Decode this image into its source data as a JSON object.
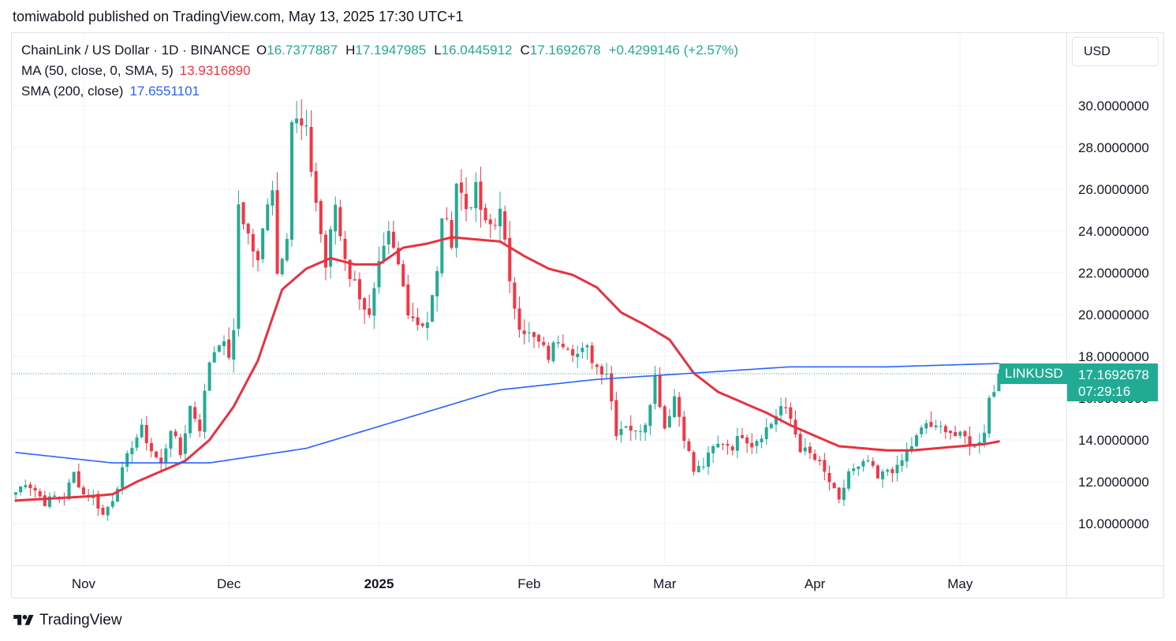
{
  "header": {
    "publisher_line": "tomiwabold published on TradingView.com, May 13, 2025 17:30 UTC+1"
  },
  "legend": {
    "symbol": "ChainLink / US Dollar · 1D · BINANCE",
    "o_label": "O",
    "o_value": "16.7377887",
    "h_label": "H",
    "h_value": "17.1947985",
    "l_label": "L",
    "l_value": "16.0445912",
    "c_label": "C",
    "c_value": "17.1692678",
    "change": "+0.4299146 (+2.57%)",
    "ma_label": "MA (50, close, 0, SMA, 5)",
    "ma_value": "13.9316890",
    "sma_label": "SMA (200, close)",
    "sma_value": "17.6551101"
  },
  "currency": "USD",
  "price_tag": {
    "symbol": "LINKUSD",
    "price": "17.1692678",
    "countdown": "07:29:16"
  },
  "brand": "TradingView",
  "colors": {
    "up": "#22ab94",
    "down": "#f23645",
    "ma50": "#e8313f",
    "sma200": "#2962ff",
    "grid": "#f0f3fa",
    "text": "#131722"
  },
  "chart_data": {
    "type": "candlestick",
    "interval": "1D",
    "y_ticks": [
      "10.0000000",
      "12.0000000",
      "14.0000000",
      "16.0000000",
      "18.0000000",
      "20.0000000",
      "22.0000000",
      "24.0000000",
      "26.0000000",
      "28.0000000",
      "30.0000000"
    ],
    "y_tick_values": [
      10,
      12,
      14,
      16,
      18,
      20,
      22,
      24,
      26,
      28,
      30
    ],
    "ylim": [
      8,
      31.6
    ],
    "x_ticks": [
      {
        "label": "Nov",
        "index": 14,
        "bold": false
      },
      {
        "label": "Dec",
        "index": 44,
        "bold": false
      },
      {
        "label": "2025",
        "index": 75,
        "bold": true
      },
      {
        "label": "Feb",
        "index": 106,
        "bold": false
      },
      {
        "label": "Mar",
        "index": 134,
        "bold": false
      },
      {
        "label": "Apr",
        "index": 165,
        "bold": false
      },
      {
        "label": "May",
        "index": 195,
        "bold": false
      }
    ],
    "x_count": 204,
    "last_price": 17.17,
    "anchors": [
      [
        0,
        11.5
      ],
      [
        2,
        12.0
      ],
      [
        4,
        11.6
      ],
      [
        6,
        11.0
      ],
      [
        8,
        11.3
      ],
      [
        10,
        11.3
      ],
      [
        12,
        12.4
      ],
      [
        14,
        11.4
      ],
      [
        16,
        11.3
      ],
      [
        18,
        10.4
      ],
      [
        20,
        11.2
      ],
      [
        22,
        12.5
      ],
      [
        24,
        13.8
      ],
      [
        26,
        14.5
      ],
      [
        28,
        13.5
      ],
      [
        30,
        12.8
      ],
      [
        32,
        14.6
      ],
      [
        34,
        13.3
      ],
      [
        36,
        15.6
      ],
      [
        38,
        14.6
      ],
      [
        40,
        17.8
      ],
      [
        42,
        18.8
      ],
      [
        44,
        18.1
      ],
      [
        45,
        19.0
      ],
      [
        46,
        25.3
      ],
      [
        48,
        23.8
      ],
      [
        50,
        22.4
      ],
      [
        52,
        25.6
      ],
      [
        53,
        26.2
      ],
      [
        54,
        22.0
      ],
      [
        56,
        24.0
      ],
      [
        57,
        29.3
      ],
      [
        58,
        29.2
      ],
      [
        60,
        28.6
      ],
      [
        62,
        25.4
      ],
      [
        64,
        22.3
      ],
      [
        66,
        25.3
      ],
      [
        67,
        23.8
      ],
      [
        69,
        21.9
      ],
      [
        71,
        21.0
      ],
      [
        73,
        19.8
      ],
      [
        75,
        22.2
      ],
      [
        77,
        23.7
      ],
      [
        79,
        22.3
      ],
      [
        81,
        20.3
      ],
      [
        83,
        19.6
      ],
      [
        85,
        19.7
      ],
      [
        87,
        21.9
      ],
      [
        88,
        24.8
      ],
      [
        90,
        23.6
      ],
      [
        91,
        26.4
      ],
      [
        93,
        25.1
      ],
      [
        95,
        25.9
      ],
      [
        97,
        24.2
      ],
      [
        99,
        24.3
      ],
      [
        100,
        25.4
      ],
      [
        102,
        21.3
      ],
      [
        104,
        19.6
      ],
      [
        106,
        19.0
      ],
      [
        108,
        18.6
      ],
      [
        110,
        18.0
      ],
      [
        112,
        18.9
      ],
      [
        114,
        18.6
      ],
      [
        116,
        18.1
      ],
      [
        118,
        18.3
      ],
      [
        120,
        17.5
      ],
      [
        122,
        17.3
      ],
      [
        124,
        14.4
      ],
      [
        126,
        14.8
      ],
      [
        128,
        14.3
      ],
      [
        130,
        14.9
      ],
      [
        132,
        17.0
      ],
      [
        134,
        14.6
      ],
      [
        136,
        16.1
      ],
      [
        138,
        14.2
      ],
      [
        140,
        12.5
      ],
      [
        142,
        12.8
      ],
      [
        144,
        13.6
      ],
      [
        146,
        13.9
      ],
      [
        148,
        13.7
      ],
      [
        150,
        14.3
      ],
      [
        152,
        13.8
      ],
      [
        154,
        14.3
      ],
      [
        156,
        14.8
      ],
      [
        158,
        15.6
      ],
      [
        160,
        15.0
      ],
      [
        162,
        13.6
      ],
      [
        164,
        13.3
      ],
      [
        166,
        12.8
      ],
      [
        168,
        12.0
      ],
      [
        170,
        11.0
      ],
      [
        172,
        12.5
      ],
      [
        174,
        12.6
      ],
      [
        176,
        13.0
      ],
      [
        178,
        12.1
      ],
      [
        180,
        12.6
      ],
      [
        182,
        12.6
      ],
      [
        184,
        13.4
      ],
      [
        186,
        14.1
      ],
      [
        188,
        14.8
      ],
      [
        190,
        14.5
      ],
      [
        192,
        14.6
      ],
      [
        194,
        14.2
      ],
      [
        196,
        14.1
      ],
      [
        198,
        13.6
      ],
      [
        200,
        14.5
      ],
      [
        201,
        16.0
      ],
      [
        202,
        16.4
      ],
      [
        203,
        17.17
      ]
    ],
    "series": [
      {
        "name": "MA (50, close, 0, SMA, 5)",
        "color": "#e8313f",
        "points": [
          [
            0,
            11.1
          ],
          [
            15,
            11.3
          ],
          [
            20,
            11.4
          ],
          [
            25,
            12.0
          ],
          [
            30,
            12.5
          ],
          [
            35,
            13.0
          ],
          [
            40,
            14.0
          ],
          [
            45,
            15.6
          ],
          [
            50,
            17.8
          ],
          [
            55,
            21.2
          ],
          [
            60,
            22.2
          ],
          [
            65,
            22.7
          ],
          [
            70,
            22.4
          ],
          [
            75,
            22.4
          ],
          [
            80,
            23.2
          ],
          [
            85,
            23.4
          ],
          [
            90,
            23.7
          ],
          [
            95,
            23.6
          ],
          [
            100,
            23.5
          ],
          [
            105,
            22.8
          ],
          [
            110,
            22.2
          ],
          [
            115,
            21.9
          ],
          [
            120,
            21.3
          ],
          [
            125,
            20.1
          ],
          [
            130,
            19.5
          ],
          [
            135,
            18.8
          ],
          [
            140,
            17.2
          ],
          [
            145,
            16.3
          ],
          [
            150,
            15.8
          ],
          [
            155,
            15.3
          ],
          [
            160,
            14.7
          ],
          [
            165,
            14.2
          ],
          [
            170,
            13.7
          ],
          [
            175,
            13.6
          ],
          [
            180,
            13.5
          ],
          [
            185,
            13.5
          ],
          [
            190,
            13.6
          ],
          [
            195,
            13.7
          ],
          [
            200,
            13.8
          ],
          [
            203,
            13.93
          ]
        ]
      },
      {
        "name": "SMA (200, close)",
        "color": "#2962ff",
        "points": [
          [
            0,
            13.4
          ],
          [
            20,
            12.9
          ],
          [
            40,
            12.9
          ],
          [
            60,
            13.6
          ],
          [
            80,
            15.0
          ],
          [
            100,
            16.4
          ],
          [
            120,
            16.9
          ],
          [
            140,
            17.2
          ],
          [
            160,
            17.5
          ],
          [
            180,
            17.5
          ],
          [
            203,
            17.66
          ]
        ]
      }
    ]
  }
}
